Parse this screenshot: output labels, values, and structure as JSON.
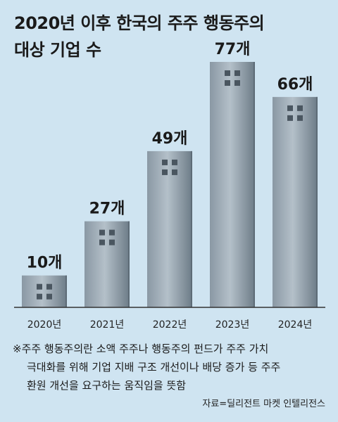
{
  "title_lines": [
    "2020년 이후 한국의 주주 행동주의",
    "대상 기업 수"
  ],
  "chart_data": {
    "type": "bar",
    "categories": [
      "2020년",
      "2021년",
      "2022년",
      "2023년",
      "2024년"
    ],
    "values": [
      10,
      27,
      49,
      77,
      66
    ],
    "value_labels": [
      "10개",
      "27개",
      "49개",
      "77개",
      "66개"
    ],
    "ylim": [
      0,
      77
    ]
  },
  "colors": {
    "background": "#cfe4f1",
    "bar_light": "#a9b6c0",
    "bar_dark": "#6f7f8c",
    "window": "#4a5660"
  },
  "note_lines": [
    "※주주 행동주의란 소액 주주나 행동주의 펀드가 주주 가치",
    "극대화를 위해 기업 지배 구조 개선이나 배당 증가 등 주주",
    "환원 개선을 요구하는 움직임을 뜻함"
  ],
  "source": "자료=딜리전트 마켓 인텔리전스"
}
